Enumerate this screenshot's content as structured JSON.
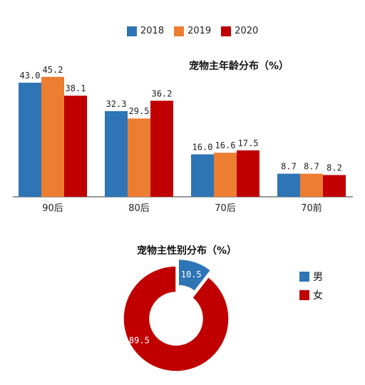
{
  "colors": {
    "s2018": "#2e75b6",
    "s2019": "#ed7d31",
    "s2020": "#c00000",
    "male": "#2e75b6",
    "female": "#c00000"
  },
  "chart_data": [
    {
      "type": "bar",
      "title": "宠物主年龄分布（%）",
      "categories": [
        "90后",
        "80后",
        "70后",
        "70前"
      ],
      "series": [
        {
          "name": "2018",
          "values": [
            43.0,
            32.3,
            16.0,
            8.7
          ]
        },
        {
          "name": "2019",
          "values": [
            45.2,
            29.5,
            16.6,
            8.7
          ]
        },
        {
          "name": "2020",
          "values": [
            38.1,
            36.2,
            17.5,
            8.2
          ]
        }
      ],
      "legend": "top",
      "grid": false
    },
    {
      "type": "pie",
      "title": "宠物主性别分布（%）",
      "labels": [
        "男",
        "女"
      ],
      "values": [
        10.5,
        89.5
      ],
      "legend": "right"
    }
  ]
}
